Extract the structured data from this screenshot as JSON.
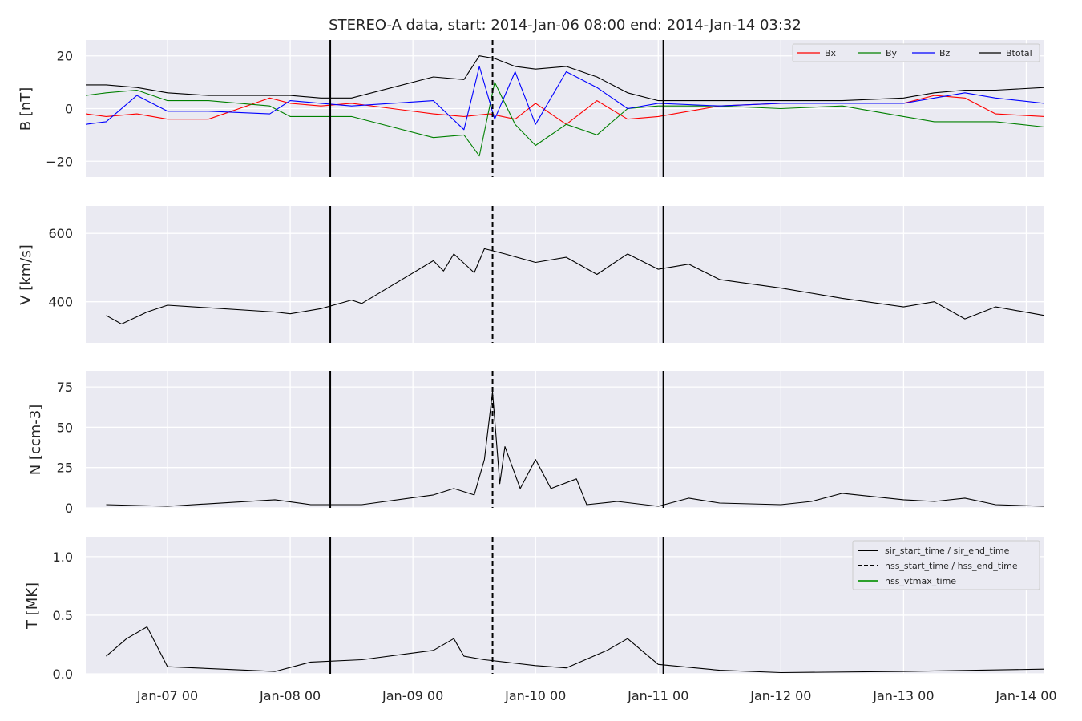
{
  "chart_data": {
    "type": "line",
    "title": "STEREO-A data, start: 2014-Jan-06 08:00  end: 2014-Jan-14 03:32",
    "x_range": [
      "2014-01-06 08:00",
      "2014-01-14 03:32"
    ],
    "x_ticks": [
      {
        "date": "2014-01-07 00:00",
        "label": "Jan-07 00"
      },
      {
        "date": "2014-01-08 00:00",
        "label": "Jan-08 00"
      },
      {
        "date": "2014-01-09 00:00",
        "label": "Jan-09 00"
      },
      {
        "date": "2014-01-10 00:00",
        "label": "Jan-10 00"
      },
      {
        "date": "2014-01-11 00:00",
        "label": "Jan-11 00"
      },
      {
        "date": "2014-01-12 00:00",
        "label": "Jan-12 00"
      },
      {
        "date": "2014-01-13 00:00",
        "label": "Jan-13 00"
      },
      {
        "date": "2014-01-14 00:00",
        "label": "Jan-14 00"
      }
    ],
    "vertical_markers": [
      {
        "type": "sir_start_time",
        "date": "2014-01-08 07:50",
        "style": "solid"
      },
      {
        "type": "hss_start_time",
        "date": "2014-01-09 15:35",
        "style": "dashed"
      },
      {
        "type": "sir_end_time",
        "date": "2014-01-11 01:00",
        "style": "solid"
      }
    ],
    "panels": [
      {
        "id": "B",
        "ylabel": "B [nT]",
        "ylim": [
          -26,
          26
        ],
        "yticks": [
          -20,
          0,
          20
        ],
        "legend": "top-right",
        "series": [
          {
            "name": "Bx",
            "color": "#ff0000",
            "points": [
              [
                "2014-01-06 08:00",
                -2
              ],
              [
                "2014-01-06 12:00",
                -3
              ],
              [
                "2014-01-06 18:00",
                -2
              ],
              [
                "2014-01-07 00:00",
                -4
              ],
              [
                "2014-01-07 08:00",
                -4
              ],
              [
                "2014-01-07 20:00",
                4
              ],
              [
                "2014-01-08 00:00",
                2
              ],
              [
                "2014-01-08 06:00",
                1
              ],
              [
                "2014-01-08 12:00",
                2
              ],
              [
                "2014-01-09 04:00",
                -2
              ],
              [
                "2014-01-09 10:00",
                -3
              ],
              [
                "2014-01-09 15:00",
                -2
              ],
              [
                "2014-01-09 20:00",
                -4
              ],
              [
                "2014-01-10 00:00",
                2
              ],
              [
                "2014-01-10 06:00",
                -6
              ],
              [
                "2014-01-10 12:00",
                3
              ],
              [
                "2014-01-10 18:00",
                -4
              ],
              [
                "2014-01-11 00:00",
                -3
              ],
              [
                "2014-01-11 12:00",
                1
              ],
              [
                "2014-01-12 00:00",
                2
              ],
              [
                "2014-01-12 12:00",
                2
              ],
              [
                "2014-01-13 00:00",
                2
              ],
              [
                "2014-01-13 06:00",
                5
              ],
              [
                "2014-01-13 12:00",
                4
              ],
              [
                "2014-01-13 18:00",
                -2
              ],
              [
                "2014-01-14 03:32",
                -3
              ]
            ]
          },
          {
            "name": "By",
            "color": "#008000",
            "points": [
              [
                "2014-01-06 08:00",
                5
              ],
              [
                "2014-01-06 12:00",
                6
              ],
              [
                "2014-01-06 18:00",
                7
              ],
              [
                "2014-01-07 00:00",
                3
              ],
              [
                "2014-01-07 08:00",
                3
              ],
              [
                "2014-01-07 20:00",
                1
              ],
              [
                "2014-01-08 00:00",
                -3
              ],
              [
                "2014-01-08 06:00",
                -3
              ],
              [
                "2014-01-08 12:00",
                -3
              ],
              [
                "2014-01-09 04:00",
                -11
              ],
              [
                "2014-01-09 10:00",
                -10
              ],
              [
                "2014-01-09 13:00",
                -18
              ],
              [
                "2014-01-09 16:00",
                10
              ],
              [
                "2014-01-09 20:00",
                -6
              ],
              [
                "2014-01-10 00:00",
                -14
              ],
              [
                "2014-01-10 06:00",
                -6
              ],
              [
                "2014-01-10 12:00",
                -10
              ],
              [
                "2014-01-10 18:00",
                0
              ],
              [
                "2014-01-11 00:00",
                1
              ],
              [
                "2014-01-11 12:00",
                1
              ],
              [
                "2014-01-12 00:00",
                0
              ],
              [
                "2014-01-12 12:00",
                1
              ],
              [
                "2014-01-13 00:00",
                -3
              ],
              [
                "2014-01-13 06:00",
                -5
              ],
              [
                "2014-01-13 12:00",
                -5
              ],
              [
                "2014-01-13 18:00",
                -5
              ],
              [
                "2014-01-14 03:32",
                -7
              ]
            ]
          },
          {
            "name": "Bz",
            "color": "#0000ff",
            "points": [
              [
                "2014-01-06 08:00",
                -6
              ],
              [
                "2014-01-06 12:00",
                -5
              ],
              [
                "2014-01-06 18:00",
                5
              ],
              [
                "2014-01-07 00:00",
                -1
              ],
              [
                "2014-01-07 08:00",
                -1
              ],
              [
                "2014-01-07 20:00",
                -2
              ],
              [
                "2014-01-08 00:00",
                3
              ],
              [
                "2014-01-08 06:00",
                2
              ],
              [
                "2014-01-08 12:00",
                1
              ],
              [
                "2014-01-09 04:00",
                3
              ],
              [
                "2014-01-09 10:00",
                -8
              ],
              [
                "2014-01-09 13:00",
                16
              ],
              [
                "2014-01-09 16:00",
                -4
              ],
              [
                "2014-01-09 20:00",
                14
              ],
              [
                "2014-01-10 00:00",
                -6
              ],
              [
                "2014-01-10 06:00",
                14
              ],
              [
                "2014-01-10 12:00",
                8
              ],
              [
                "2014-01-10 18:00",
                0
              ],
              [
                "2014-01-11 00:00",
                2
              ],
              [
                "2014-01-11 12:00",
                1
              ],
              [
                "2014-01-12 00:00",
                2
              ],
              [
                "2014-01-12 12:00",
                2
              ],
              [
                "2014-01-13 00:00",
                2
              ],
              [
                "2014-01-13 06:00",
                4
              ],
              [
                "2014-01-13 12:00",
                6
              ],
              [
                "2014-01-13 18:00",
                4
              ],
              [
                "2014-01-14 03:32",
                2
              ]
            ]
          },
          {
            "name": "Btotal",
            "color": "#000000",
            "points": [
              [
                "2014-01-06 08:00",
                9
              ],
              [
                "2014-01-06 12:00",
                9
              ],
              [
                "2014-01-06 18:00",
                8
              ],
              [
                "2014-01-07 00:00",
                6
              ],
              [
                "2014-01-07 08:00",
                5
              ],
              [
                "2014-01-07 20:00",
                5
              ],
              [
                "2014-01-08 00:00",
                5
              ],
              [
                "2014-01-08 06:00",
                4
              ],
              [
                "2014-01-08 12:00",
                4
              ],
              [
                "2014-01-09 04:00",
                12
              ],
              [
                "2014-01-09 10:00",
                11
              ],
              [
                "2014-01-09 13:00",
                20
              ],
              [
                "2014-01-09 16:00",
                19
              ],
              [
                "2014-01-09 20:00",
                16
              ],
              [
                "2014-01-10 00:00",
                15
              ],
              [
                "2014-01-10 06:00",
                16
              ],
              [
                "2014-01-10 12:00",
                12
              ],
              [
                "2014-01-10 18:00",
                6
              ],
              [
                "2014-01-11 00:00",
                3
              ],
              [
                "2014-01-11 12:00",
                3
              ],
              [
                "2014-01-12 00:00",
                3
              ],
              [
                "2014-01-12 12:00",
                3
              ],
              [
                "2014-01-13 00:00",
                4
              ],
              [
                "2014-01-13 06:00",
                6
              ],
              [
                "2014-01-13 12:00",
                7
              ],
              [
                "2014-01-13 18:00",
                7
              ],
              [
                "2014-01-14 03:32",
                8
              ]
            ]
          }
        ]
      },
      {
        "id": "V",
        "ylabel": "V [km/s]",
        "ylim": [
          280,
          680
        ],
        "yticks": [
          400,
          600
        ],
        "series": [
          {
            "name": "",
            "color": "#000000",
            "points": [
              [
                "2014-01-06 12:00",
                360
              ],
              [
                "2014-01-06 15:00",
                335
              ],
              [
                "2014-01-06 20:00",
                370
              ],
              [
                "2014-01-07 00:00",
                390
              ],
              [
                "2014-01-07 21:00",
                370
              ],
              [
                "2014-01-08 00:00",
                365
              ],
              [
                "2014-01-08 06:00",
                380
              ],
              [
                "2014-01-08 12:00",
                405
              ],
              [
                "2014-01-08 14:00",
                395
              ],
              [
                "2014-01-09 04:00",
                520
              ],
              [
                "2014-01-09 06:00",
                490
              ],
              [
                "2014-01-09 08:00",
                540
              ],
              [
                "2014-01-09 12:00",
                485
              ],
              [
                "2014-01-09 14:00",
                555
              ],
              [
                "2014-01-09 18:00",
                540
              ],
              [
                "2014-01-10 00:00",
                515
              ],
              [
                "2014-01-10 06:00",
                530
              ],
              [
                "2014-01-10 12:00",
                480
              ],
              [
                "2014-01-10 18:00",
                540
              ],
              [
                "2014-01-11 00:00",
                495
              ],
              [
                "2014-01-11 06:00",
                510
              ],
              [
                "2014-01-11 12:00",
                465
              ],
              [
                "2014-01-12 00:00",
                440
              ],
              [
                "2014-01-12 06:00",
                425
              ],
              [
                "2014-01-12 12:00",
                410
              ],
              [
                "2014-01-13 00:00",
                385
              ],
              [
                "2014-01-13 06:00",
                400
              ],
              [
                "2014-01-13 12:00",
                350
              ],
              [
                "2014-01-13 18:00",
                385
              ],
              [
                "2014-01-14 03:32",
                360
              ]
            ]
          }
        ]
      },
      {
        "id": "N",
        "ylabel": "N [ccm-3]",
        "ylim": [
          0,
          85
        ],
        "yticks": [
          0,
          25,
          50,
          75
        ],
        "series": [
          {
            "name": "",
            "color": "#000000",
            "points": [
              [
                "2014-01-06 12:00",
                2
              ],
              [
                "2014-01-07 00:00",
                1
              ],
              [
                "2014-01-07 21:00",
                5
              ],
              [
                "2014-01-08 04:00",
                2
              ],
              [
                "2014-01-08 14:00",
                2
              ],
              [
                "2014-01-09 04:00",
                8
              ],
              [
                "2014-01-09 08:00",
                12
              ],
              [
                "2014-01-09 12:00",
                8
              ],
              [
                "2014-01-09 14:00",
                30
              ],
              [
                "2014-01-09 15:35",
                72
              ],
              [
                "2014-01-09 17:00",
                15
              ],
              [
                "2014-01-09 18:00",
                38
              ],
              [
                "2014-01-09 21:00",
                12
              ],
              [
                "2014-01-10 00:00",
                30
              ],
              [
                "2014-01-10 03:00",
                12
              ],
              [
                "2014-01-10 08:00",
                18
              ],
              [
                "2014-01-10 10:00",
                2
              ],
              [
                "2014-01-10 16:00",
                4
              ],
              [
                "2014-01-11 00:00",
                1
              ],
              [
                "2014-01-11 06:00",
                6
              ],
              [
                "2014-01-11 12:00",
                3
              ],
              [
                "2014-01-12 00:00",
                2
              ],
              [
                "2014-01-12 06:00",
                4
              ],
              [
                "2014-01-12 12:00",
                9
              ],
              [
                "2014-01-13 00:00",
                5
              ],
              [
                "2014-01-13 06:00",
                4
              ],
              [
                "2014-01-13 12:00",
                6
              ],
              [
                "2014-01-13 18:00",
                2
              ],
              [
                "2014-01-14 03:32",
                1
              ]
            ]
          }
        ]
      },
      {
        "id": "T",
        "ylabel": "T [MK]",
        "ylim": [
          0,
          1.17
        ],
        "yticks": [
          0.0,
          0.5,
          1.0
        ],
        "legend": "top-right",
        "legend_entries": [
          {
            "label": "sir_start_time / sir_end_time",
            "color": "#000000",
            "style": "solid"
          },
          {
            "label": "hss_start_time / hss_end_time",
            "color": "#000000",
            "style": "dashed"
          },
          {
            "label": "hss_vtmax_time",
            "color": "#2ca02c",
            "style": "solid"
          }
        ],
        "series": [
          {
            "name": "",
            "color": "#000000",
            "points": [
              [
                "2014-01-06 12:00",
                0.15
              ],
              [
                "2014-01-06 16:00",
                0.3
              ],
              [
                "2014-01-06 20:00",
                0.4
              ],
              [
                "2014-01-07 00:00",
                0.06
              ],
              [
                "2014-01-07 21:00",
                0.02
              ],
              [
                "2014-01-08 04:00",
                0.1
              ],
              [
                "2014-01-08 14:00",
                0.12
              ],
              [
                "2014-01-09 04:00",
                0.2
              ],
              [
                "2014-01-09 08:00",
                0.3
              ],
              [
                "2014-01-09 10:00",
                0.15
              ],
              [
                "2014-01-09 14:00",
                0.12
              ],
              [
                "2014-01-10 00:00",
                0.07
              ],
              [
                "2014-01-10 06:00",
                0.05
              ],
              [
                "2014-01-10 14:00",
                0.2
              ],
              [
                "2014-01-10 18:00",
                0.3
              ],
              [
                "2014-01-11 00:00",
                0.08
              ],
              [
                "2014-01-11 12:00",
                0.03
              ],
              [
                "2014-01-12 00:00",
                0.01
              ],
              [
                "2014-01-13 00:00",
                0.02
              ],
              [
                "2014-01-14 03:32",
                0.04
              ]
            ]
          }
        ]
      }
    ]
  }
}
